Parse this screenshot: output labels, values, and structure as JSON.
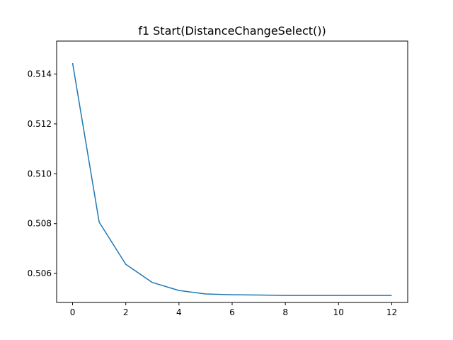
{
  "chart_data": {
    "type": "line",
    "title": "f1 Start(DistanceChangeSelect())",
    "xlabel": "",
    "ylabel": "",
    "xlim": [
      -0.6,
      12.6
    ],
    "ylim": [
      0.50484,
      0.51532
    ],
    "xticks": [
      0,
      2,
      4,
      6,
      8,
      10,
      12
    ],
    "xtick_labels": [
      "0",
      "2",
      "4",
      "6",
      "8",
      "10",
      "12"
    ],
    "yticks": [
      0.506,
      0.508,
      0.51,
      0.512,
      0.514
    ],
    "ytick_labels": [
      "0.506",
      "0.508",
      "0.510",
      "0.512",
      "0.514"
    ],
    "grid": false,
    "legend": "none",
    "series": [
      {
        "color": "#1f77b4",
        "x": [
          0,
          1,
          2,
          3,
          4,
          5,
          6,
          7,
          8,
          9,
          10,
          11,
          12
        ],
        "y": [
          0.51444,
          0.50806,
          0.50637,
          0.50564,
          0.50532,
          0.50518,
          0.50515,
          0.50514,
          0.50512,
          0.50512,
          0.50512,
          0.50512,
          0.50512
        ]
      }
    ]
  }
}
